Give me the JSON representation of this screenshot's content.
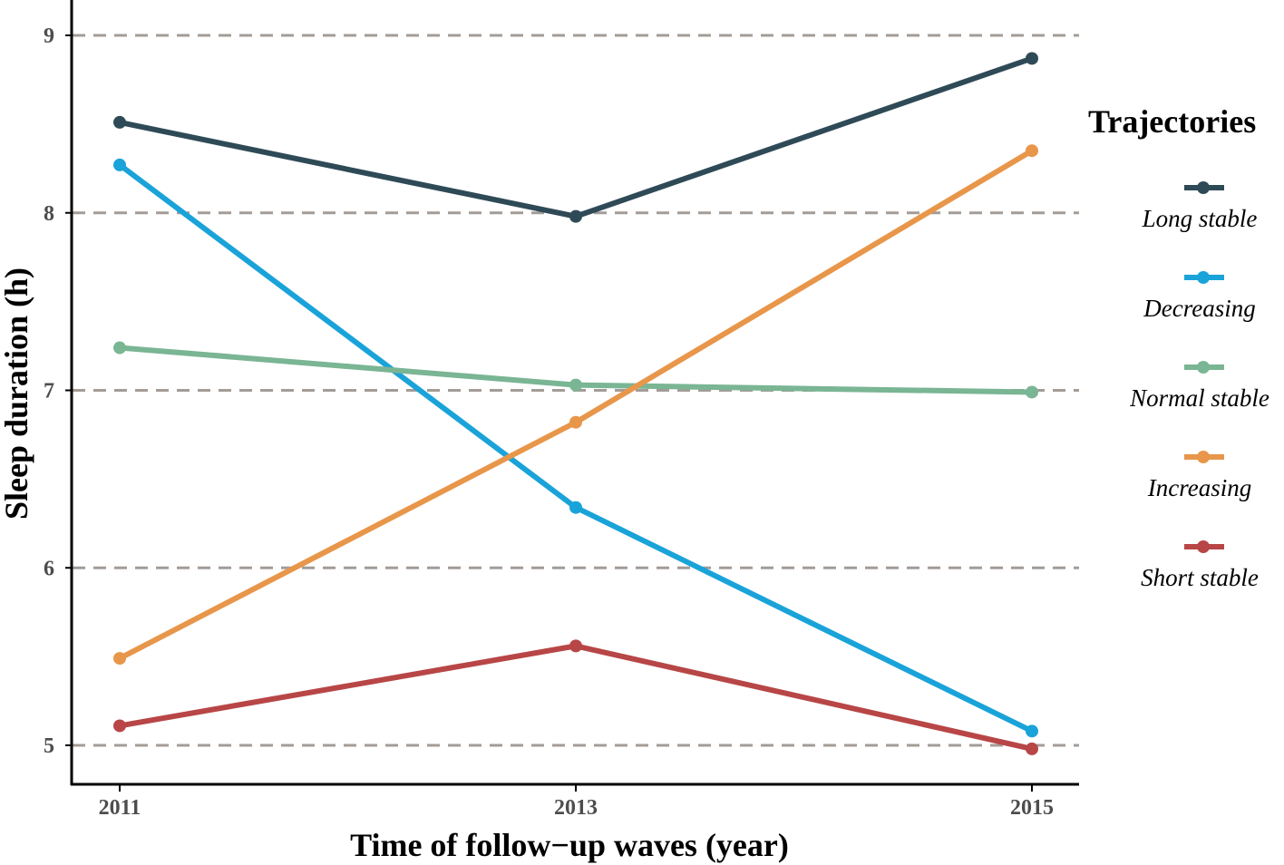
{
  "chart_data": {
    "type": "line",
    "title": "",
    "xlabel": "Time of follow−up waves (year)",
    "ylabel": "Sleep duration (h)",
    "x": [
      "2011",
      "2013",
      "2015"
    ],
    "yticks": [
      5,
      6,
      7,
      8,
      9
    ],
    "ylim": [
      4.8,
      9.2
    ],
    "grid": "horizontal dashed",
    "legend": {
      "title": "Trajectories",
      "position": "right"
    },
    "series": [
      {
        "name": "Long stable",
        "color": "#2f4a57",
        "values": [
          8.51,
          7.98,
          8.87
        ]
      },
      {
        "name": "Decreasing",
        "color": "#1aa3d9",
        "values": [
          8.27,
          6.34,
          5.08
        ]
      },
      {
        "name": "Normal stable",
        "color": "#7ab594",
        "values": [
          7.24,
          7.03,
          6.99
        ]
      },
      {
        "name": "Increasing",
        "color": "#e8964a",
        "values": [
          5.49,
          6.82,
          8.35
        ]
      },
      {
        "name": "Short stable",
        "color": "#b84646",
        "values": [
          5.11,
          5.56,
          4.98
        ]
      }
    ]
  }
}
